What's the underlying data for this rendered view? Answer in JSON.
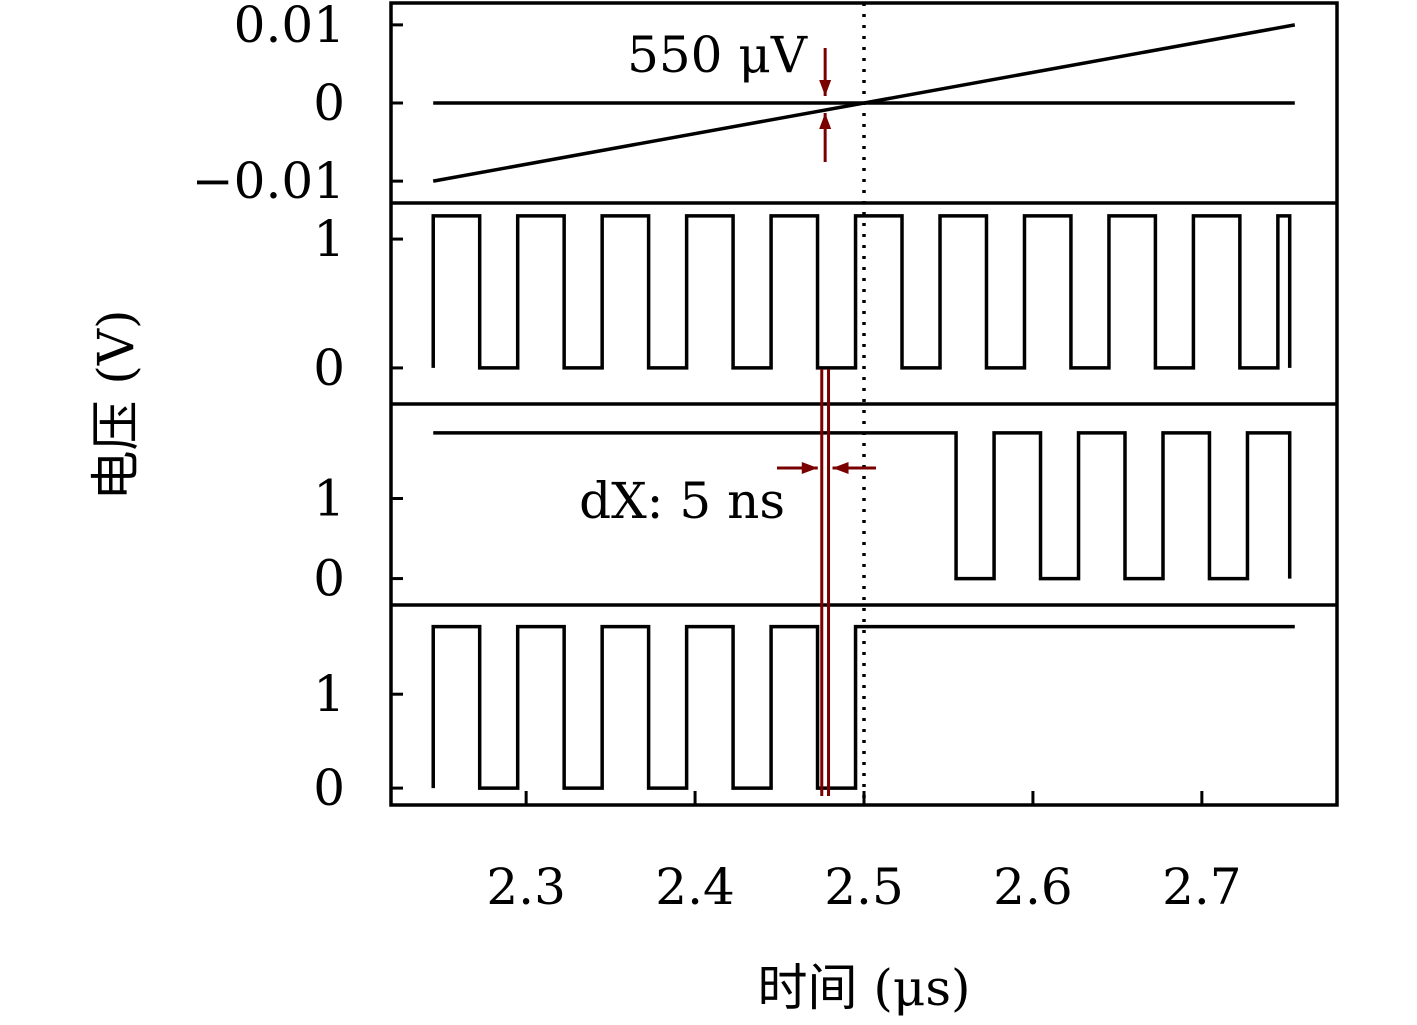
{
  "chart_data": {
    "type": "line",
    "xlabel": "时间 (μs)",
    "ylabel": "电压 (V)",
    "xlim": [
      2.22,
      2.78
    ],
    "xticks": [
      2.3,
      2.4,
      2.5,
      2.6,
      2.7
    ],
    "x_tick_labels": [
      "2.3",
      "2.4",
      "2.5",
      "2.6",
      "2.7"
    ],
    "marker_x": 2.5,
    "panels": [
      {
        "name": "panel-1",
        "ylim": [
          -0.0128,
          0.0128
        ],
        "yticks": [
          0.01,
          0,
          -0.01
        ],
        "y_tick_labels": [
          "0.01",
          "0",
          "−0.01"
        ],
        "series": [
          {
            "kind": "line",
            "points": [
              [
                2.245,
                0
              ],
              [
                2.755,
                0
              ]
            ]
          },
          {
            "kind": "line",
            "points": [
              [
                2.245,
                -0.01
              ],
              [
                2.755,
                0.01
              ]
            ]
          }
        ]
      },
      {
        "name": "panel-2",
        "ylim": [
          -0.28,
          1.28
        ],
        "yticks": [
          1,
          0
        ],
        "y_tick_labels": [
          "1",
          "0"
        ],
        "series": [
          {
            "kind": "square",
            "start": 2.245,
            "end": 2.752,
            "first_rise": 2.245,
            "period": 0.05,
            "duty": 0.55,
            "high": 1.18,
            "low": 0
          }
        ]
      },
      {
        "name": "panel-3",
        "ylim": [
          -0.33,
          2.18
        ],
        "yticks": [
          1,
          0
        ],
        "y_tick_labels": [
          "1",
          "0"
        ],
        "series": [
          {
            "kind": "gated-square",
            "start": 2.245,
            "end": 2.752,
            "gate_from": 2.527,
            "gate_to": 2.752,
            "first_rise": 2.527,
            "period": 0.05,
            "duty": 0.55,
            "high": 1.82,
            "low": 0
          }
        ]
      },
      {
        "name": "panel-4",
        "ylim": [
          -0.18,
          1.95
        ],
        "yticks": [
          1,
          0
        ],
        "y_tick_labels": [
          "1",
          "0"
        ],
        "series": [
          {
            "kind": "gated-square",
            "start": 2.245,
            "end": 2.755,
            "gate_from": 2.245,
            "gate_to": 2.5,
            "first_rise": 2.245,
            "period": 0.05,
            "duty": 0.55,
            "high": 1.72,
            "low": 0
          }
        ]
      }
    ],
    "annotations": {
      "voltage_offset": {
        "text": "550 μV",
        "x": 2.477,
        "color": "#7a0000"
      },
      "time_offset": {
        "text": "dX: 5 ns",
        "x1": 2.475,
        "x2": 2.479,
        "color": "#7a0000"
      }
    }
  }
}
